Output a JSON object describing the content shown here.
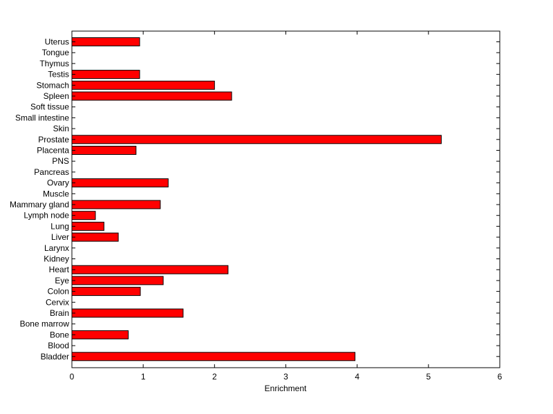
{
  "chart_data": {
    "type": "bar",
    "orientation": "horizontal",
    "categories": [
      "Uterus",
      "Tongue",
      "Thymus",
      "Testis",
      "Stomach",
      "Spleen",
      "Soft tissue",
      "Small intestine",
      "Skin",
      "Prostate",
      "Placenta",
      "PNS",
      "Pancreas",
      "Ovary",
      "Muscle",
      "Mammary gland",
      "Lymph node",
      "Lung",
      "Liver",
      "Larynx",
      "Kidney",
      "Heart",
      "Eye",
      "Colon",
      "Cervix",
      "Brain",
      "Bone marrow",
      "Bone",
      "Blood",
      "Bladder"
    ],
    "values": [
      0.95,
      0,
      0,
      0.95,
      2.0,
      2.24,
      0,
      0,
      0,
      5.18,
      0.9,
      0,
      0,
      1.35,
      0,
      1.24,
      0.33,
      0.45,
      0.65,
      0,
      0,
      2.19,
      1.28,
      0.96,
      0,
      1.56,
      0,
      0.79,
      0,
      3.97
    ],
    "xlabel": "Enrichment",
    "ylabel": "",
    "title": "",
    "xlim": [
      0,
      6
    ],
    "xticks": [
      0,
      1,
      2,
      3,
      4,
      5,
      6
    ],
    "bar_color": "#ff0000",
    "edge_color": "#000000",
    "grid": false
  }
}
